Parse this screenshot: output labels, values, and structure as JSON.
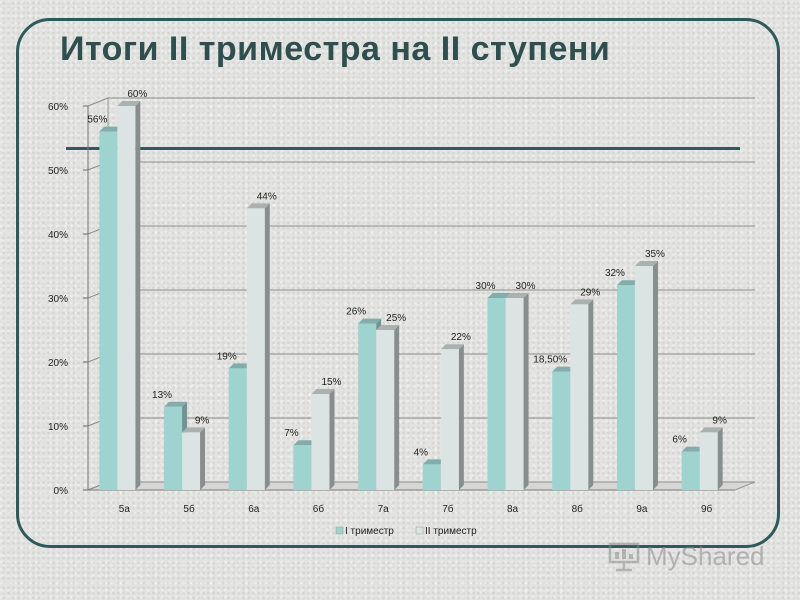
{
  "page": {
    "title": "Итоги II триместра на II ступени",
    "watermark": "MyShared"
  },
  "chart_data": {
    "type": "bar",
    "categories": [
      "5а",
      "5б",
      "6а",
      "6б",
      "7а",
      "7б",
      "8а",
      "8б",
      "9а",
      "9б"
    ],
    "series": [
      {
        "name": "I триместр",
        "values": [
          56,
          13,
          19,
          7,
          26,
          4,
          30,
          18.5,
          32,
          6
        ],
        "labels": [
          "56%",
          "13%",
          "19%",
          "7%",
          "26%",
          "4%",
          "30%",
          "18,50%",
          "32%",
          "6%"
        ],
        "color": "#9ed3cf"
      },
      {
        "name": "II триместр",
        "values": [
          60,
          9,
          44,
          15,
          25,
          22,
          30,
          29,
          35,
          9
        ],
        "labels": [
          "60%",
          "9%",
          "44%",
          "15%",
          "25%",
          "22%",
          "30%",
          "29%",
          "35%",
          "9%"
        ],
        "color": "#dbe3e3"
      }
    ],
    "ylim": [
      0,
      60
    ],
    "yticks": [
      0,
      10,
      20,
      30,
      40,
      50,
      60
    ],
    "ytick_labels": [
      "0%",
      "10%",
      "20%",
      "30%",
      "40%",
      "50%",
      "60%"
    ],
    "grid": true,
    "legend_position": "bottom"
  }
}
